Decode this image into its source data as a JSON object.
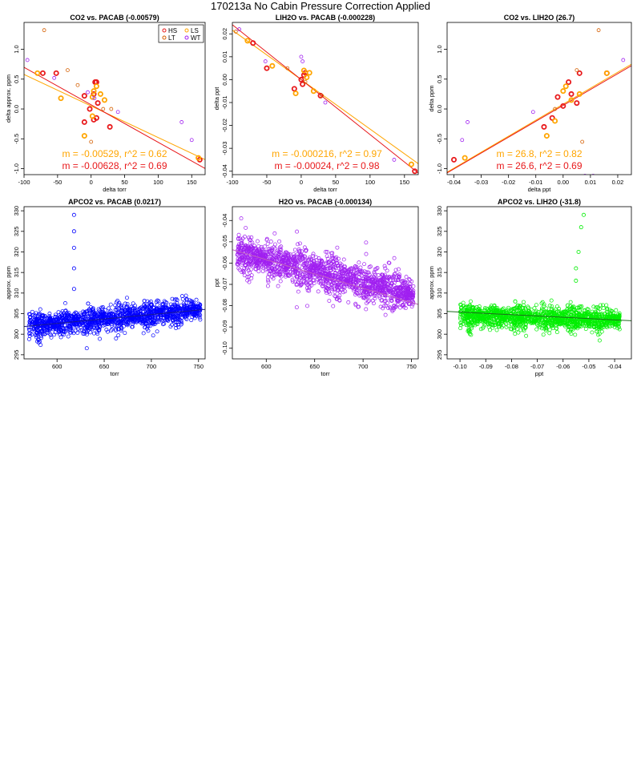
{
  "page": {
    "title": "170213a   No Cabin Pressure Correction Applied"
  },
  "colors": {
    "HS": "#e8191b",
    "LS": "#ffa500",
    "LT": "#d55e00",
    "WT": "#a020f0"
  },
  "chart_data": [
    {
      "type": "scatter",
      "title": "CO2 vs. PACAB (-0.00579)",
      "xlabel": "delta torr",
      "ylabel": "delta approx. ppm",
      "xlim": [
        -100,
        170
      ],
      "ylim": [
        -1.1,
        1.45
      ],
      "xticks": [
        -100,
        -50,
        0,
        50,
        100,
        150
      ],
      "yticks": [
        -1.0,
        -0.5,
        0.0,
        0.5,
        1.0
      ],
      "ytick_labels": [
        "-1.0",
        "-0.5",
        "0.0",
        "0.5",
        "1.0"
      ],
      "legend": {
        "position": "top-right",
        "entries": [
          "HS",
          "LS",
          "LT",
          "WT"
        ]
      },
      "series": [
        {
          "name": "HS",
          "color": "#e8191b",
          "bold": true,
          "points": [
            [
              -72,
              0.6
            ],
            [
              -52,
              0.6
            ],
            [
              -10,
              0.22
            ],
            [
              -10,
              -0.22
            ],
            [
              4,
              0.25
            ],
            [
              6,
              0.45
            ],
            [
              8,
              0.45
            ],
            [
              -2,
              0.0
            ],
            [
              4,
              -0.18
            ],
            [
              8,
              -0.15
            ],
            [
              10,
              0.1
            ],
            [
              28,
              -0.3
            ],
            [
              162,
              -0.85
            ]
          ]
        },
        {
          "name": "LS",
          "color": "#ffa500",
          "bold": true,
          "points": [
            [
              -80,
              0.6
            ],
            [
              -45,
              0.18
            ],
            [
              -10,
              -0.45
            ],
            [
              2,
              -0.12
            ],
            [
              4,
              0.3
            ],
            [
              8,
              0.38
            ],
            [
              14,
              0.25
            ],
            [
              20,
              0.15
            ],
            [
              2,
              0.2
            ],
            [
              160,
              -0.82
            ]
          ]
        },
        {
          "name": "LT",
          "color": "#d55e00",
          "bold": false,
          "points": [
            [
              -70,
              1.32
            ],
            [
              -35,
              0.65
            ],
            [
              -20,
              0.4
            ],
            [
              0,
              -0.55
            ],
            [
              18,
              0.0
            ],
            [
              30,
              0.0
            ]
          ]
        },
        {
          "name": "WT",
          "color": "#a020f0",
          "bold": false,
          "points": [
            [
              -95,
              0.82
            ],
            [
              -55,
              0.52
            ],
            [
              -5,
              0.28
            ],
            [
              5,
              0.18
            ],
            [
              40,
              -0.05
            ],
            [
              135,
              -0.22
            ],
            [
              150,
              -0.52
            ]
          ]
        }
      ],
      "fits": [
        {
          "color": "#ffa500",
          "slope": -0.00529,
          "intercept": 0.05
        },
        {
          "color": "#e8191b",
          "slope": -0.00628,
          "intercept": 0.07
        }
      ],
      "annotations": [
        {
          "text": "m = -0.00529, r^2 = 0.62",
          "color": "#ffa500"
        },
        {
          "text": "m = -0.00628, r^2 = 0.69",
          "color": "#e8191b"
        }
      ]
    },
    {
      "type": "scatter",
      "title": "LIH2O vs. PACAB (-0.000228)",
      "xlabel": "delta torr",
      "ylabel": "delta ppt",
      "xlim": [
        -100,
        170
      ],
      "ylim": [
        -0.0415,
        0.025
      ],
      "xticks": [
        -100,
        -50,
        0,
        50,
        100,
        150
      ],
      "yticks": [
        -0.04,
        -0.03,
        -0.02,
        -0.01,
        0.0,
        0.01,
        0.02
      ],
      "ytick_labels": [
        "-0.04",
        "-0.03",
        "-0.02",
        "-0.01",
        "0.00",
        "0.01",
        "0.02"
      ],
      "series": [
        {
          "name": "HS",
          "color": "#e8191b",
          "bold": true,
          "points": [
            [
              -70,
              0.016
            ],
            [
              -50,
              0.005
            ],
            [
              -10,
              -0.004
            ],
            [
              0,
              0.0
            ],
            [
              4,
              0.002
            ],
            [
              6,
              0.003
            ],
            [
              2,
              -0.002
            ],
            [
              28,
              -0.007
            ],
            [
              165,
              -0.04
            ]
          ]
        },
        {
          "name": "LS",
          "color": "#ffa500",
          "bold": true,
          "points": [
            [
              -78,
              0.017
            ],
            [
              -42,
              0.006
            ],
            [
              -8,
              -0.006
            ],
            [
              4,
              0.004
            ],
            [
              8,
              0.001
            ],
            [
              12,
              0.003
            ],
            [
              18,
              -0.005
            ],
            [
              160,
              -0.037
            ]
          ]
        },
        {
          "name": "LT",
          "color": "#d55e00",
          "bold": false,
          "points": [
            [
              -95,
              0.021
            ],
            [
              -20,
              0.005
            ],
            [
              6,
              -0.001
            ],
            [
              30,
              -0.007
            ]
          ]
        },
        {
          "name": "WT",
          "color": "#a020f0",
          "bold": false,
          "points": [
            [
              -90,
              0.022
            ],
            [
              -52,
              0.008
            ],
            [
              0,
              0.01
            ],
            [
              2,
              0.008
            ],
            [
              35,
              -0.01
            ],
            [
              135,
              -0.035
            ]
          ]
        }
      ],
      "fits": [
        {
          "color": "#ffa500",
          "slope": -0.000216,
          "intercept": 0.0
        },
        {
          "color": "#e8191b",
          "slope": -0.00024,
          "intercept": 0.0
        }
      ],
      "annotations": [
        {
          "text": "m = -0.000216, r^2 = 0.97",
          "color": "#ffa500"
        },
        {
          "text": "m = -0.00024, r^2 = 0.98",
          "color": "#e8191b"
        }
      ]
    },
    {
      "type": "scatter",
      "title": "CO2 vs. LIH2O (26.7)",
      "xlabel": "delta ppt",
      "ylabel": "delta ppm",
      "xlim": [
        -0.0425,
        0.025
      ],
      "ylim": [
        -1.1,
        1.45
      ],
      "xticks": [
        -0.04,
        -0.03,
        -0.02,
        -0.01,
        0.0,
        0.01,
        0.02
      ],
      "xtick_labels": [
        "-0.04",
        "-0.03",
        "-0.02",
        "-0.01",
        "0.00",
        "0.01",
        "0.02"
      ],
      "yticks": [
        -1.0,
        -0.5,
        0.0,
        0.5,
        1.0
      ],
      "ytick_labels": [
        "-1.0",
        "-0.5",
        "0.0",
        "0.5",
        "1.0"
      ],
      "series": [
        {
          "name": "HS",
          "color": "#e8191b",
          "bold": true,
          "points": [
            [
              -0.04,
              -0.85
            ],
            [
              -0.007,
              -0.3
            ],
            [
              -0.004,
              -0.15
            ],
            [
              -0.002,
              0.2
            ],
            [
              0.0,
              0.05
            ],
            [
              0.002,
              0.45
            ],
            [
              0.003,
              0.25
            ],
            [
              0.005,
              0.1
            ],
            [
              0.006,
              0.6
            ],
            [
              0.016,
              0.6
            ]
          ]
        },
        {
          "name": "LS",
          "color": "#ffa500",
          "bold": true,
          "points": [
            [
              -0.036,
              -0.82
            ],
            [
              -0.006,
              -0.45
            ],
            [
              -0.003,
              -0.2
            ],
            [
              0.0,
              0.3
            ],
            [
              0.001,
              0.38
            ],
            [
              0.003,
              0.15
            ],
            [
              0.006,
              0.25
            ],
            [
              0.016,
              0.6
            ]
          ]
        },
        {
          "name": "LT",
          "color": "#d55e00",
          "bold": false,
          "points": [
            [
              0.013,
              1.32
            ],
            [
              0.005,
              0.65
            ],
            [
              0.007,
              -0.55
            ],
            [
              -0.003,
              0.0
            ]
          ]
        },
        {
          "name": "WT",
          "color": "#a020f0",
          "bold": false,
          "points": [
            [
              0.022,
              0.82
            ],
            [
              -0.035,
              -0.22
            ],
            [
              -0.037,
              -0.52
            ],
            [
              -0.011,
              -0.05
            ],
            [
              0.008,
              -1.12
            ],
            [
              0.011,
              -1.12
            ]
          ]
        }
      ],
      "fits": [
        {
          "color": "#ffa500",
          "slope": 26.8,
          "intercept": 0.08
        },
        {
          "color": "#e8191b",
          "slope": 26.6,
          "intercept": 0.06
        }
      ],
      "annotations": [
        {
          "text": "m = 26.8, r^2 = 0.82",
          "color": "#ffa500"
        },
        {
          "text": "m = 26.6, r^2 = 0.69",
          "color": "#e8191b"
        }
      ]
    },
    {
      "type": "scatter",
      "title": "APCO2 vs. PACAB (0.0217)",
      "xlabel": "torr",
      "ylabel": "approx. ppm",
      "xlim": [
        565,
        757
      ],
      "ylim": [
        294,
        331
      ],
      "xticks": [
        600,
        650,
        700,
        750
      ],
      "yticks": [
        295,
        300,
        305,
        310,
        315,
        320,
        325,
        330
      ],
      "color": "#0000ff",
      "cloud": {
        "x_min": 570,
        "x_max": 752,
        "center_start": 302,
        "center_end": 306,
        "spread": 3.2,
        "count": 1400
      },
      "outliers": [
        [
          618,
          329
        ],
        [
          618,
          325
        ],
        [
          618,
          321
        ],
        [
          618,
          316
        ],
        [
          618,
          311
        ]
      ],
      "fit": {
        "slope": 0.0217,
        "intercept": 289.6,
        "color": "#1a1a8c"
      }
    },
    {
      "type": "scatter",
      "title": "H2O vs. PACAB (-0.000134)",
      "xlabel": "torr",
      "ylabel": "ppt",
      "xlim": [
        565,
        757
      ],
      "ylim": [
        -0.105,
        -0.0335
      ],
      "xticks": [
        600,
        650,
        700,
        750
      ],
      "yticks": [
        -0.1,
        -0.09,
        -0.08,
        -0.07,
        -0.06,
        -0.05,
        -0.04
      ],
      "ytick_labels": [
        "-0.10",
        "-0.09",
        "-0.08",
        "-0.07",
        "-0.06",
        "-0.05",
        "-0.04"
      ],
      "color": "#a020f0",
      "cloud": {
        "x_min": 570,
        "x_max": 752,
        "center_start": -0.055,
        "center_end": -0.075,
        "spread": 0.009,
        "count": 1600
      },
      "fit": {
        "slope": -0.000134,
        "intercept": 0.022,
        "color": "#c060c0"
      }
    },
    {
      "type": "scatter",
      "title": "APCO2 vs. LIH2O (-31.8)",
      "xlabel": "ppt",
      "ylabel": "approx. ppm",
      "xlim": [
        -0.105,
        -0.0335
      ],
      "ylim": [
        294,
        331
      ],
      "xticks": [
        -0.1,
        -0.09,
        -0.08,
        -0.07,
        -0.06,
        -0.05,
        -0.04
      ],
      "xtick_labels": [
        "-0.10",
        "-0.09",
        "-0.08",
        "-0.07",
        "-0.06",
        "-0.05",
        "-0.04"
      ],
      "yticks": [
        295,
        300,
        305,
        310,
        315,
        320,
        325,
        330
      ],
      "color": "#00ee00",
      "cloud": {
        "x_min": -0.1,
        "x_max": -0.038,
        "center_start": 304.5,
        "center_end": 303.5,
        "spread": 3.0,
        "count": 1400
      },
      "outliers": [
        [
          -0.052,
          329
        ],
        [
          -0.053,
          326
        ],
        [
          -0.054,
          320
        ],
        [
          -0.055,
          316
        ],
        [
          -0.055,
          313
        ]
      ],
      "fit": {
        "slope": -31.8,
        "intercept": 302.2,
        "color": "#1f6b1f"
      }
    }
  ]
}
